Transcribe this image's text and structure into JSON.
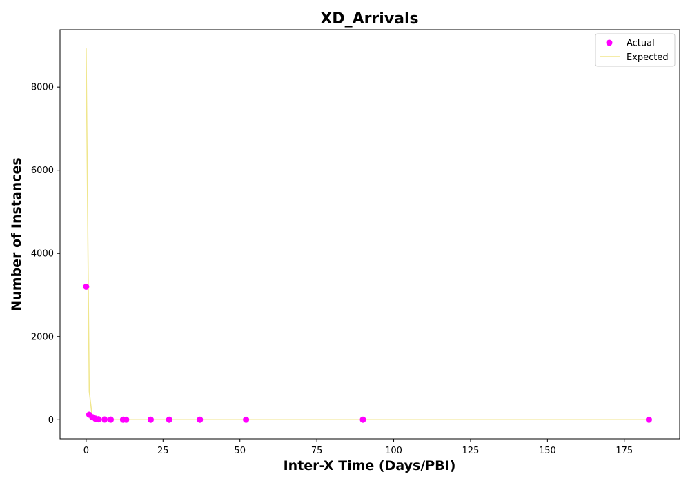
{
  "chart_data": {
    "type": "scatter",
    "title": "XD_Arrivals",
    "xlabel": "Inter-X Time (Days/PBI)",
    "ylabel": "Number of Instances",
    "xlim": [
      -8.5,
      193
    ],
    "ylim": [
      -460,
      9380
    ],
    "xticks": [
      0,
      25,
      50,
      75,
      100,
      125,
      150,
      175
    ],
    "yticks": [
      0,
      2000,
      4000,
      6000,
      8000
    ],
    "grid": false,
    "legend_position": "top-right",
    "series": [
      {
        "name": "Actual",
        "kind": "scatter",
        "color": "#ff00ff",
        "points": [
          {
            "x": 0,
            "y": 3200
          },
          {
            "x": 1,
            "y": 120
          },
          {
            "x": 2,
            "y": 60
          },
          {
            "x": 3,
            "y": 25
          },
          {
            "x": 4,
            "y": 10
          },
          {
            "x": 6,
            "y": 5
          },
          {
            "x": 8,
            "y": 2
          },
          {
            "x": 12,
            "y": 1
          },
          {
            "x": 13,
            "y": 1
          },
          {
            "x": 21,
            "y": 1
          },
          {
            "x": 27,
            "y": 1
          },
          {
            "x": 37,
            "y": 1
          },
          {
            "x": 52,
            "y": 1
          },
          {
            "x": 90,
            "y": 1
          },
          {
            "x": 183,
            "y": 1
          }
        ]
      },
      {
        "name": "Expected",
        "kind": "line",
        "color": "#f0e68c",
        "points": [
          {
            "x": 0,
            "y": 8930
          },
          {
            "x": 1,
            "y": 680
          },
          {
            "x": 2,
            "y": 52
          },
          {
            "x": 3,
            "y": 4
          },
          {
            "x": 4,
            "y": 0.3
          },
          {
            "x": 6,
            "y": 0
          },
          {
            "x": 8,
            "y": 0
          },
          {
            "x": 12,
            "y": 0
          },
          {
            "x": 13,
            "y": 0
          },
          {
            "x": 21,
            "y": 0
          },
          {
            "x": 27,
            "y": 0
          },
          {
            "x": 37,
            "y": 0
          },
          {
            "x": 52,
            "y": 0
          },
          {
            "x": 90,
            "y": 0
          },
          {
            "x": 183,
            "y": 0
          }
        ]
      }
    ]
  }
}
